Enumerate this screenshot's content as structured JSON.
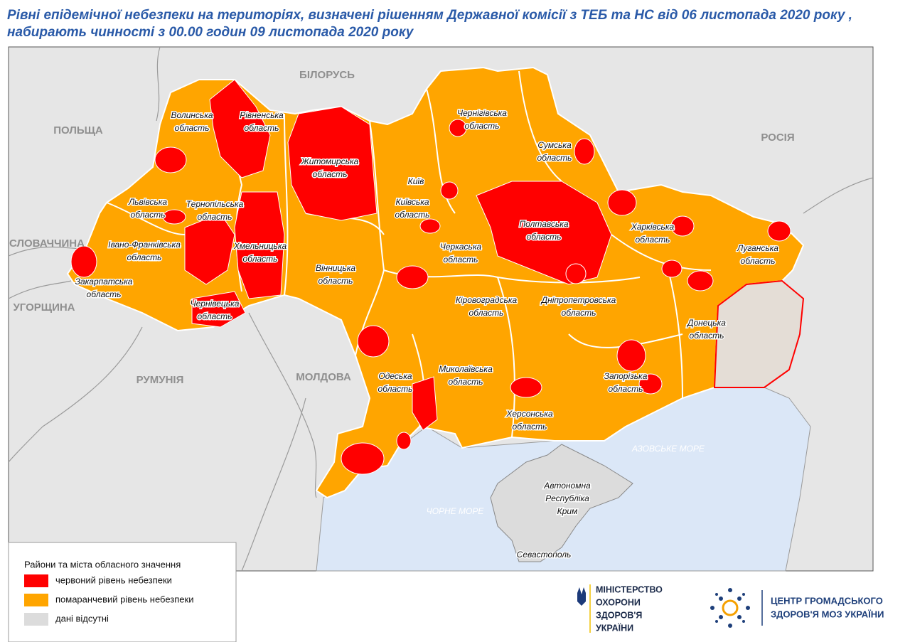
{
  "header": {
    "title": [
      "Рівні епідемічної небезпеки на територіях, визначені рішенням Державної комісії з ТЕБ та НС від 06 листопада 2020 року ,",
      "набирають чинності з 00.00 годин 09 листопада 2020 року"
    ]
  },
  "map": {
    "countries": [
      "БІЛОРУСЬ",
      "ПОЛЬЩА",
      "РОСІЯ",
      "СЛОВАЧЧИНА",
      "УГОРЩИНА",
      "РУМУНІЯ",
      "МОЛДОВА"
    ],
    "seas": [
      "АЗОВСЬКЕ МОРЕ",
      "ЧОРНЕ МОРЕ"
    ],
    "regions": [
      [
        "Волинська",
        "область"
      ],
      [
        "Рівненська",
        "область"
      ],
      [
        "Житомирська",
        "область"
      ],
      [
        "Чернігівська",
        "область"
      ],
      [
        "Сумська",
        "область"
      ],
      [
        "Київська",
        "область"
      ],
      [
        "Львівська",
        "область"
      ],
      [
        "Тернопільська",
        "область"
      ],
      [
        "Хмельницька",
        "область"
      ],
      [
        "Івано-Франківська",
        "область"
      ],
      [
        "Закарпатська",
        "область"
      ],
      [
        "Чернівецька",
        "область"
      ],
      [
        "Вінницька",
        "область"
      ],
      [
        "Черкаська",
        "область"
      ],
      [
        "Полтавська",
        "область"
      ],
      [
        "Харківська",
        "область"
      ],
      [
        "Луганська",
        "область"
      ],
      [
        "Кіровоградська",
        "область"
      ],
      [
        "Дніпропетровська",
        "область"
      ],
      [
        "Донецька",
        "область"
      ],
      [
        "Одеська",
        "область"
      ],
      [
        "Миколаївська",
        "область"
      ],
      [
        "Запорізька",
        "область"
      ],
      [
        "Херсонська",
        "область"
      ],
      [
        "Автономна",
        "Республіка",
        "Крим"
      ]
    ],
    "cities": [
      "Київ",
      "Севастополь"
    ]
  },
  "legend": {
    "title": "Райони та міста обласного значення",
    "items": [
      {
        "label": "червоний рівень небезпеки",
        "color": "#ff0000"
      },
      {
        "label": "помаранчевий рівень небезпеки",
        "color": "#ffa500"
      },
      {
        "label": "дані відсутні",
        "color": "#dcdcdc"
      }
    ]
  },
  "logos": {
    "ministry": [
      "МІНІСТЕРСТВО",
      "ОХОРОНИ",
      "ЗДОРОВ'Я",
      "УКРАЇНИ"
    ],
    "center": [
      "ЦЕНТР ГРОМАДСЬКОГО",
      "ЗДОРОВ'Я МОЗ УКРАЇНИ"
    ]
  }
}
